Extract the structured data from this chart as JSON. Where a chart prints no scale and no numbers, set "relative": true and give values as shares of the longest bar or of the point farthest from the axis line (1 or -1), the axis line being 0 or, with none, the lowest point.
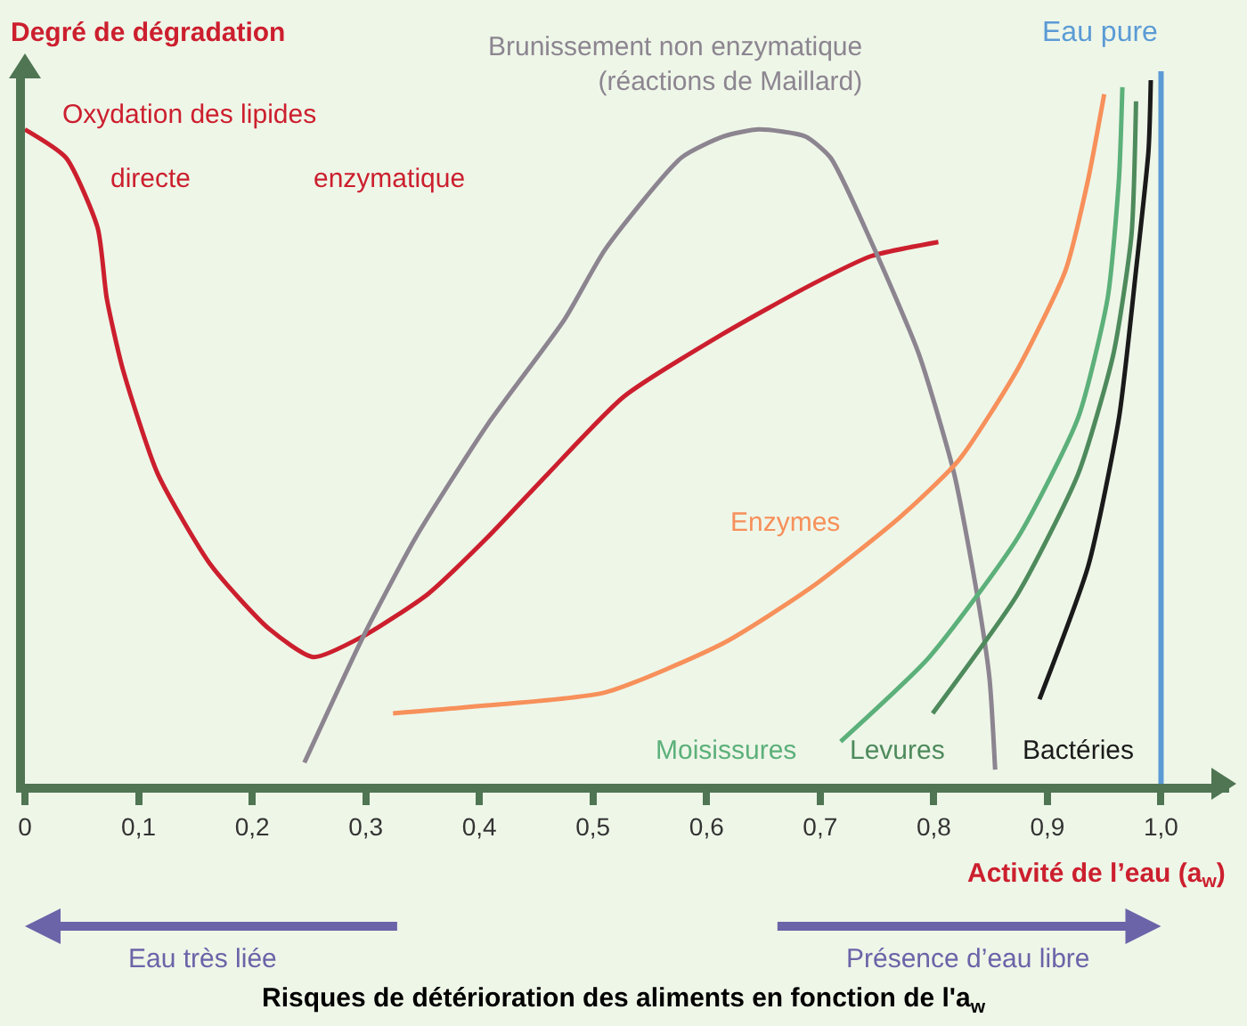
{
  "chart_data": {
    "type": "line",
    "title": "Risques de détérioration des aliments en fonction de l'a$_{w}$",
    "xlabel": "Activité de l’eau (a$_{w}$)",
    "ylabel": "Degré de dégradation",
    "relative": true,
    "legend": false,
    "grid": false,
    "tick_labels": "x",
    "xlim": [
      0,
      1.06
    ],
    "xticks": [
      0,
      {
        "value": 0.1,
        "label": "0,1"
      },
      {
        "value": 0.2,
        "label": "0,2"
      },
      {
        "value": 0.3,
        "label": "0,3"
      },
      {
        "value": 0.4,
        "label": "0,4"
      },
      {
        "value": 0.5,
        "label": "0,5"
      },
      {
        "value": 0.6,
        "label": "0,6"
      },
      {
        "value": 0.7,
        "label": "0,7"
      },
      {
        "value": 0.8,
        "label": "0,8"
      },
      {
        "value": 0.9,
        "label": "0,9"
      },
      {
        "value": 1,
        "label": "1,0"
      }
    ],
    "series": [
      {
        "name": "Oxydation des lipides",
        "color": "#cc1f2e",
        "x": [
          0,
          0.036,
          0.064,
          0.072,
          0.086,
          0.117,
          0.164,
          0.215,
          0.254,
          0.298,
          0.355,
          0.407,
          0.46,
          0.527,
          0.615,
          0.693,
          0.745,
          0.804
        ],
        "values": [
          0.93,
          0.89,
          0.79,
          0.69,
          0.59,
          0.44,
          0.31,
          0.22,
          0.18,
          0.21,
          0.27,
          0.35,
          0.44,
          0.55,
          0.64,
          0.71,
          0.75,
          0.77
        ]
      },
      {
        "name": "Brunissement non enzymatique\n(réactions de Maillard)",
        "color": "#8c8590",
        "x": [
          0.246,
          0.298,
          0.344,
          0.407,
          0.475,
          0.511,
          0.578,
          0.615,
          0.646,
          0.687,
          0.709,
          0.745,
          0.787,
          0.818,
          0.838,
          0.849,
          0.854
        ],
        "values": [
          0.03,
          0.21,
          0.35,
          0.51,
          0.66,
          0.76,
          0.89,
          0.92,
          0.93,
          0.92,
          0.89,
          0.77,
          0.61,
          0.44,
          0.27,
          0.15,
          0.02
        ]
      },
      {
        "name": "Enzymes",
        "color": "#f7905a",
        "x": [
          0.324,
          0.397,
          0.511,
          0.615,
          0.693,
          0.771,
          0.822,
          0.874,
          0.916,
          0.936,
          0.95
        ],
        "values": [
          0.1,
          0.11,
          0.13,
          0.2,
          0.28,
          0.38,
          0.46,
          0.59,
          0.73,
          0.86,
          0.98
        ]
      },
      {
        "name": "Moisissures",
        "color": "#5cb07a",
        "x": [
          0.718,
          0.796,
          0.874,
          0.927,
          0.953,
          0.963,
          0.966
        ],
        "values": [
          0.06,
          0.18,
          0.35,
          0.52,
          0.69,
          0.86,
          0.99
        ]
      },
      {
        "name": "Levures",
        "color": "#4e8a5c",
        "x": [
          0.799,
          0.874,
          0.927,
          0.958,
          0.974,
          0.978
        ],
        "values": [
          0.1,
          0.27,
          0.44,
          0.61,
          0.78,
          0.97
        ]
      },
      {
        "name": "Bactéries",
        "color": "#1a1a1a",
        "x": [
          0.893,
          0.936,
          0.963,
          0.978,
          0.989,
          0.991
        ],
        "values": [
          0.12,
          0.31,
          0.52,
          0.73,
          0.9,
          1
        ]
      }
    ],
    "ref_lines": [
      {
        "axis": "x",
        "value": 1,
        "label": "Eau pure",
        "color": "#5b9bd5"
      }
    ],
    "annotations": [
      "directe",
      "enzymatique",
      "Eau très liée",
      "Présence d’eau libre"
    ]
  }
}
